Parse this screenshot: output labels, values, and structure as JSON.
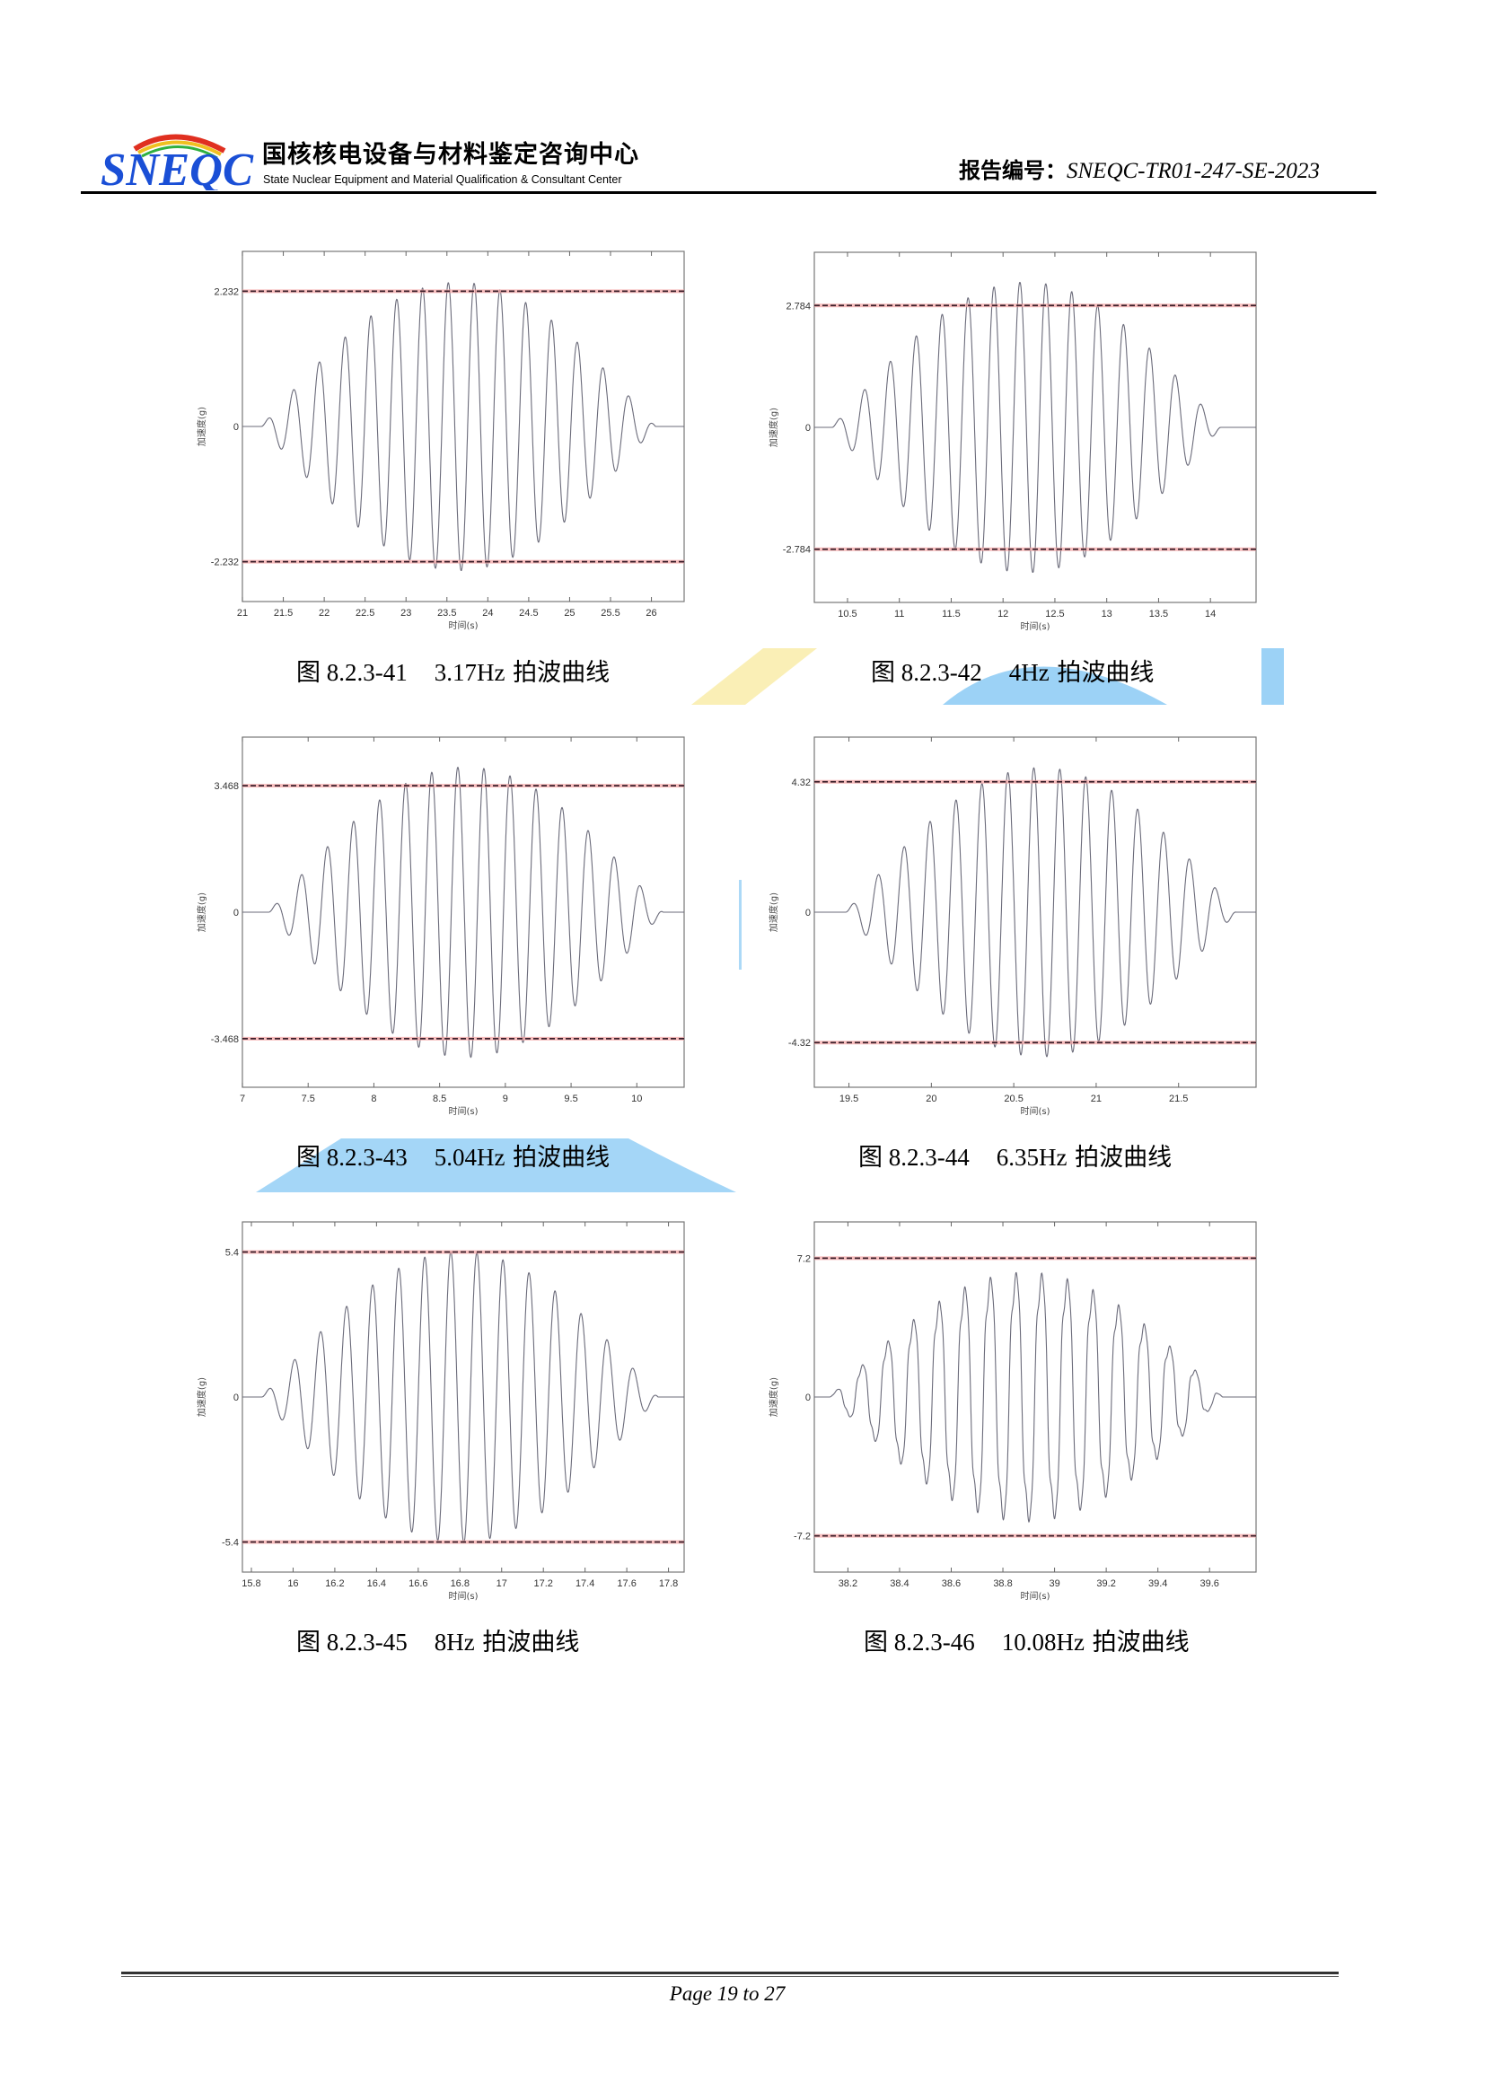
{
  "header": {
    "logo_text": "SNEQC",
    "org_name_cn": "国核核电设备与材料鉴定咨询中心",
    "org_name_en": "State Nuclear Equipment and Material Qualification & Consultant Center",
    "report_number_label": "报告编号：",
    "report_number": "SNEQC-TR01-247-SE-2023"
  },
  "colors": {
    "logo_blue": "#1a4fd6",
    "waveform": "#6b6b7a",
    "threshold_line": "#3a1f2a",
    "threshold_halo": "#f3a0a0",
    "watermark_blue": "#5ab4f0"
  },
  "chart_data": [
    {
      "type": "line",
      "xlabel": "时间(s)",
      "ylabel": "加速度(g)",
      "xlim": [
        21,
        26.4
      ],
      "ylim": [
        -2.89,
        2.89
      ],
      "xticks": [
        "21",
        "21.5",
        "22",
        "22.5",
        "23",
        "23.5",
        "24",
        "24.5",
        "25",
        "25.5",
        "26"
      ],
      "yticks": [
        "-2.232",
        "0",
        "2.232"
      ],
      "threshold": 2.232,
      "signal": {
        "frequency_hz": 3.17,
        "start": 21.23,
        "end": 26.05,
        "peak": 2.38
      }
    },
    {
      "type": "line",
      "xlabel": "时间(s)",
      "ylabel": "加速度(g)",
      "xlim": [
        10.18,
        14.44
      ],
      "ylim": [
        -4.0,
        4.0
      ],
      "xticks": [
        "10.5",
        "11",
        "11.5",
        "12",
        "12.5",
        "13",
        "13.5",
        "14"
      ],
      "yticks": [
        "-2.784",
        "0",
        "2.784"
      ],
      "threshold": 2.784,
      "signal": {
        "frequency_hz": 4,
        "start": 10.35,
        "end": 14.1,
        "peak": 3.32
      }
    },
    {
      "type": "line",
      "xlabel": "时间(s)",
      "ylabel": "加速度(g)",
      "xlim": [
        7,
        10.36
      ],
      "ylim": [
        -4.8,
        4.8
      ],
      "xticks": [
        "7",
        "7.5",
        "8",
        "8.5",
        "9",
        "9.5",
        "10"
      ],
      "yticks": [
        "-3.468",
        "0",
        "3.468"
      ],
      "threshold": 3.468,
      "signal": {
        "frequency_hz": 5.04,
        "start": 7.2,
        "end": 10.2,
        "peak": 3.98
      }
    },
    {
      "type": "line",
      "xlabel": "时间(s)",
      "ylabel": "加速度(g)",
      "xlim": [
        19.29,
        21.97
      ],
      "ylim": [
        -5.8,
        5.8
      ],
      "xticks": [
        "19.5",
        "20",
        "20.5",
        "21",
        "21.5"
      ],
      "yticks": [
        "-4.32",
        "0",
        "4.32"
      ],
      "threshold": 4.32,
      "signal": {
        "frequency_hz": 6.35,
        "start": 19.48,
        "end": 21.85,
        "peak": 4.79
      }
    },
    {
      "type": "line",
      "xlabel": "时间(s)",
      "ylabel": "加速度(g)",
      "xlim": [
        15.757,
        17.875
      ],
      "ylim": [
        -6.52,
        6.52
      ],
      "xticks": [
        "15.8",
        "16",
        "16.2",
        "16.4",
        "16.6",
        "16.8",
        "17",
        "17.2",
        "17.4",
        "17.6",
        "17.8"
      ],
      "yticks": [
        "-5.4",
        "0",
        "5.4"
      ],
      "threshold": 5.4,
      "signal": {
        "frequency_hz": 8,
        "start": 15.85,
        "end": 17.75,
        "peak": 5.42
      }
    },
    {
      "type": "line",
      "xlabel": "时间(s)",
      "ylabel": "加速度(g)",
      "xlim": [
        38.07,
        39.78
      ],
      "ylim": [
        -9.08,
        9.08
      ],
      "xticks": [
        "38.2",
        "38.4",
        "38.6",
        "38.8",
        "39",
        "39.2",
        "39.4",
        "39.6"
      ],
      "yticks": [
        "-7.2",
        "0",
        "7.2"
      ],
      "threshold": 7.2,
      "signal": {
        "frequency_hz": 10.08,
        "start": 38.13,
        "end": 39.65,
        "peak": 7.55
      }
    }
  ],
  "captions": [
    {
      "number": "图 8.2.3-41",
      "title_value": "3.17Hz",
      "title_text": " 拍波曲线"
    },
    {
      "number": "图 8.2.3-42",
      "title_value": "4Hz",
      "title_text": " 拍波曲线"
    },
    {
      "number": "图 8.2.3-43",
      "title_value": "5.04Hz",
      "title_text": " 拍波曲线"
    },
    {
      "number": "图 8.2.3-44",
      "title_value": "6.35Hz",
      "title_text": " 拍波曲线"
    },
    {
      "number": "图 8.2.3-45",
      "title_value": "8Hz",
      "title_text": " 拍波曲线"
    },
    {
      "number": "图 8.2.3-46",
      "title_value": "10.08Hz",
      "title_text": " 拍波曲线"
    }
  ],
  "footer": {
    "page_label": "Page 19 to 27"
  }
}
